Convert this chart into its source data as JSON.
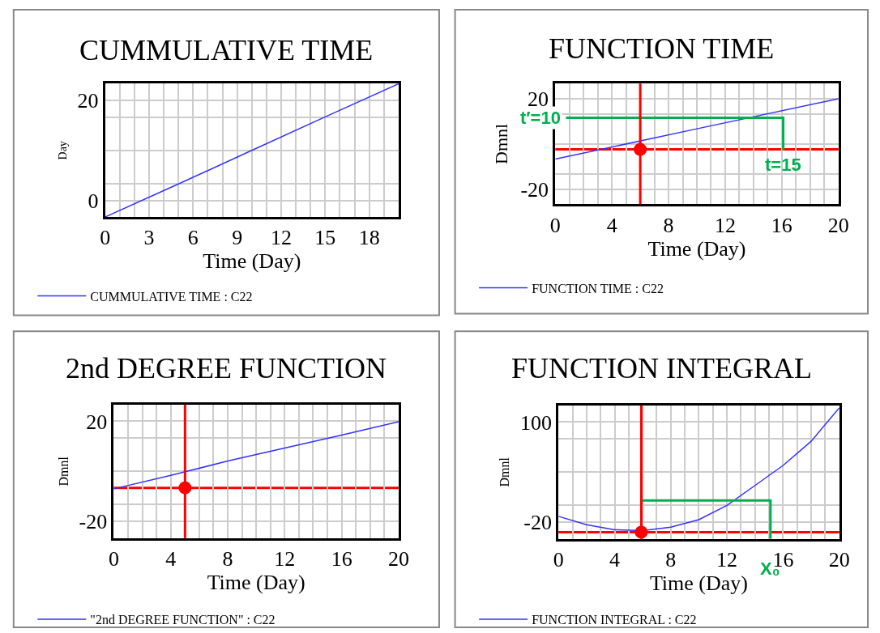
{
  "chart_data": [
    {
      "type": "line",
      "title": "CUMMULATIVE TIME",
      "xlabel": "Time (Day)",
      "ylabel": "Day",
      "grid": true,
      "legend": "bottom",
      "xlim": [
        0,
        20
      ],
      "xticks": [
        0,
        {
          "value": 1,
          "label": null
        },
        {
          "value": 2,
          "label": null
        },
        3,
        {
          "value": 4,
          "label": null
        },
        {
          "value": 5,
          "label": null
        },
        6,
        {
          "value": 7,
          "label": null
        },
        {
          "value": 8,
          "label": null
        },
        9,
        {
          "value": 10,
          "label": null
        },
        {
          "value": 11,
          "label": null
        },
        12,
        {
          "value": 13,
          "label": null
        },
        {
          "value": 14,
          "label": null
        },
        15,
        {
          "value": 16,
          "label": null
        },
        {
          "value": 17,
          "label": null
        },
        18,
        {
          "value": 19,
          "label": null
        }
      ],
      "ylim": [
        -3.33,
        23.33
      ],
      "yticks": [
        0,
        {
          "value": 3.33,
          "label": null
        },
        {
          "value": 10,
          "label": null
        },
        {
          "value": 16.67,
          "label": null
        },
        20
      ],
      "series": [
        {
          "name": "CUMMULATIVE TIME : C22",
          "color": "#3333ff",
          "x": [
            0,
            5,
            10,
            15,
            20
          ],
          "values": [
            -3.3,
            3.3,
            10,
            16.7,
            23.3
          ]
        }
      ]
    },
    {
      "type": "line",
      "title": "FUNCTION TIME",
      "xlabel": "Time (Day)",
      "ylabel": "Dmnl",
      "grid": true,
      "legend": "bottom",
      "xlim": [
        0,
        20
      ],
      "xticks": [
        0,
        {
          "value": 1,
          "label": null
        },
        {
          "value": 2,
          "label": null
        },
        {
          "value": 3,
          "label": null
        },
        4,
        {
          "value": 5,
          "label": null
        },
        {
          "value": 6,
          "label": null
        },
        {
          "value": 7,
          "label": null
        },
        8,
        {
          "value": 9,
          "label": null
        },
        {
          "value": 10,
          "label": null
        },
        {
          "value": 11,
          "label": null
        },
        12,
        {
          "value": 13,
          "label": null
        },
        {
          "value": 14,
          "label": null
        },
        {
          "value": 15,
          "label": null
        },
        16,
        {
          "value": 17,
          "label": null
        },
        {
          "value": 18,
          "label": null
        },
        {
          "value": 19,
          "label": null
        },
        20
      ],
      "ylim": [
        -26.67,
        26.67
      ],
      "yticks": [
        -20,
        {
          "value": -13.33,
          "label": null
        },
        {
          "value": 0,
          "label": null
        },
        {
          "value": 13.33,
          "label": null
        },
        20
      ],
      "series": [
        {
          "name": "FUNCTION TIME : C22",
          "color": "#3333ff",
          "x": [
            0,
            10,
            20
          ],
          "values": [
            -6.7,
            6.7,
            20
          ]
        },
        {
          "type": "line",
          "color": "#00b050",
          "x": [
            0.75,
            16.1,
            16.1
          ],
          "values": [
            11.6,
            11.6,
            -2.6
          ]
        },
        {
          "type": "scatter",
          "marker": "circle",
          "color": "#ff0000",
          "x": [
            6
          ],
          "values": [
            -2.4
          ]
        }
      ],
      "ref_lines": [
        {
          "axis": "x",
          "value": 6,
          "color": "#ff0000"
        },
        {
          "axis": "y",
          "value": -2.4,
          "color": "#ff0000"
        }
      ],
      "annotations": [
        {
          "text": "t′=10",
          "x": 0.75,
          "y": 11.6
        },
        {
          "text": "t=15",
          "x": 16.1,
          "y": -2.6
        }
      ]
    },
    {
      "type": "line",
      "title": "2nd DEGREE FUNCTION",
      "xlabel": "Time (Day)",
      "ylabel": "Dmnl",
      "grid": true,
      "legend": "bottom",
      "xlim": [
        0,
        20
      ],
      "xticks": [
        0,
        {
          "value": 1,
          "label": null
        },
        {
          "value": 2,
          "label": null
        },
        {
          "value": 3,
          "label": null
        },
        4,
        {
          "value": 5,
          "label": null
        },
        {
          "value": 6,
          "label": null
        },
        {
          "value": 7,
          "label": null
        },
        8,
        {
          "value": 9,
          "label": null
        },
        {
          "value": 10,
          "label": null
        },
        {
          "value": 11,
          "label": null
        },
        12,
        {
          "value": 13,
          "label": null
        },
        {
          "value": 14,
          "label": null
        },
        {
          "value": 15,
          "label": null
        },
        16,
        {
          "value": 17,
          "label": null
        },
        {
          "value": 18,
          "label": null
        },
        {
          "value": 19,
          "label": null
        },
        20
      ],
      "ylim": [
        -26.67,
        26.67
      ],
      "yticks": [
        -20,
        {
          "value": -13.33,
          "label": null
        },
        {
          "value": 0,
          "label": null
        },
        {
          "value": 13.33,
          "label": null
        },
        20
      ],
      "series": [
        {
          "name": "\"2nd DEGREE FUNCTION\" : C22",
          "color": "#3333ff",
          "x": [
            0,
            4,
            8,
            12,
            16,
            20
          ],
          "values": [
            -7,
            -1.6,
            4.1,
            9.3,
            14.5,
            19.8
          ]
        },
        {
          "type": "scatter",
          "marker": "circle",
          "color": "#ff0000",
          "x": [
            5
          ],
          "values": [
            -6.6
          ]
        }
      ],
      "ref_lines": [
        {
          "axis": "x",
          "value": 5,
          "color": "#ff0000"
        },
        {
          "axis": "y",
          "value": -6.6,
          "color": "#ff0000"
        }
      ]
    },
    {
      "type": "line",
      "title": "FUNCTION INTEGRAL",
      "xlabel": "Time (Day)",
      "ylabel": "Dmnl",
      "grid": true,
      "legend": "bottom",
      "xlim": [
        0,
        20
      ],
      "xticks": [
        0,
        {
          "value": 1,
          "label": null
        },
        {
          "value": 2,
          "label": null
        },
        {
          "value": 3,
          "label": null
        },
        4,
        {
          "value": 5,
          "label": null
        },
        {
          "value": 6,
          "label": null
        },
        {
          "value": 7,
          "label": null
        },
        8,
        {
          "value": 9,
          "label": null
        },
        {
          "value": 10,
          "label": null
        },
        {
          "value": 11,
          "label": null
        },
        12,
        {
          "value": 13,
          "label": null
        },
        {
          "value": 14,
          "label": null
        },
        {
          "value": 15,
          "label": null
        },
        16,
        {
          "value": 17,
          "label": null
        },
        {
          "value": 18,
          "label": null
        },
        {
          "value": 19,
          "label": null
        },
        20
      ],
      "ylim": [
        -40,
        120
      ],
      "yticks": [
        -20,
        {
          "value": 0,
          "label": null
        },
        {
          "value": 40,
          "label": null
        },
        {
          "value": 80,
          "label": null
        },
        100
      ],
      "series": [
        {
          "name": "FUNCTION INTEGRAL : C22",
          "color": "#3333ff",
          "x": [
            0,
            2,
            4,
            6,
            8,
            10,
            12,
            14,
            16,
            18,
            20
          ],
          "values": [
            -13,
            -23,
            -29,
            -30,
            -26,
            -17,
            0,
            24,
            48,
            77,
            117
          ]
        },
        {
          "type": "line",
          "color": "#00b050",
          "x": [
            5.9,
            15.1,
            15.1
          ],
          "values": [
            6,
            6,
            -40
          ]
        },
        {
          "type": "scatter",
          "marker": "circle",
          "color": "#ff0000",
          "x": [
            5.9
          ],
          "values": [
            -32
          ]
        }
      ],
      "ref_lines": [
        {
          "axis": "x",
          "value": 5.9,
          "color": "#ff0000"
        },
        {
          "axis": "y",
          "value": -32,
          "color": "#ff0000"
        }
      ],
      "annotations": [
        {
          "text": "X₀",
          "x": 15.1,
          "y": -40
        }
      ]
    }
  ]
}
